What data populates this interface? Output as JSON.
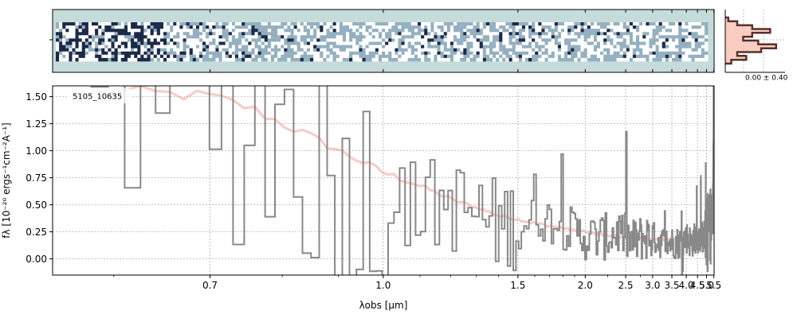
{
  "chart_data": [
    {
      "type": "heatmap",
      "title": "",
      "description_colors": {
        "background": "#c5dcdb",
        "cell_high": "#1b2a49",
        "cell_mid": "#95b0c0",
        "cell_low": "#ffffff"
      }
    },
    {
      "type": "histogram",
      "label": "0.00 ± 0.40",
      "profile_x": [
        0.05,
        0.2,
        0.45,
        0.75,
        0.45,
        0.3,
        0.55,
        0.85,
        0.6,
        0.2,
        0.35,
        0.1
      ],
      "fill_color": "#f6c0b3",
      "line_color": "#5a3028"
    },
    {
      "type": "line",
      "step": true,
      "xscale": "reciprocal",
      "object_label": "5105_10635",
      "xlabel": "λobs [μm]",
      "ylabel": "fλ [10⁻²⁰ ergs⁻¹cm⁻²A⁻¹]",
      "xlim": [
        0.55,
        5.52
      ],
      "ylim": [
        -0.15,
        1.6
      ],
      "grid": true,
      "xticks": [
        "0.7",
        "1.0",
        "1.5",
        "2.0",
        "2.5",
        "3.0",
        "3.5",
        "4.0",
        "4.5",
        "5.0",
        "5.5"
      ],
      "yticks": [
        "0.00",
        "0.25",
        "0.50",
        "0.75",
        "1.00",
        "1.25",
        "1.50"
      ],
      "series": [
        {
          "role": "data",
          "color": "#888888",
          "x": [
            0.6,
            0.7,
            0.8,
            0.9,
            1.0,
            1.2,
            1.4,
            1.6,
            1.8,
            2.0,
            2.2,
            2.4,
            2.6,
            2.8,
            3.0,
            3.2,
            3.4,
            3.6,
            3.8,
            4.0,
            4.2,
            4.4,
            4.6,
            4.8,
            5.0,
            5.2,
            5.4,
            5.5
          ],
          "y": [
            1.6,
            1.3,
            1.2,
            0.7,
            0.5,
            0.5,
            0.3,
            0.4,
            0.3,
            0.2,
            0.2,
            0.25,
            0.15,
            0.2,
            0.2,
            0.15,
            0.15,
            0.15,
            0.15,
            0.2,
            0.15,
            0.2,
            0.2,
            0.2,
            0.25,
            0.3,
            0.3,
            1.6
          ]
        },
        {
          "role": "model",
          "color": "#f4a6a0",
          "x": [
            0.6,
            0.7,
            0.75,
            0.8,
            0.9,
            1.0,
            1.2,
            1.4,
            1.6,
            1.8,
            2.0,
            2.2,
            2.5,
            3.0,
            3.5,
            4.0,
            4.5,
            5.0,
            5.2,
            5.4,
            5.45,
            5.5
          ],
          "y": [
            1.55,
            1.5,
            1.4,
            1.25,
            1.0,
            0.8,
            0.55,
            0.4,
            0.33,
            0.28,
            0.25,
            0.22,
            0.2,
            0.18,
            0.18,
            0.19,
            0.2,
            0.24,
            0.3,
            0.45,
            0.7,
            1.6
          ]
        }
      ]
    }
  ]
}
